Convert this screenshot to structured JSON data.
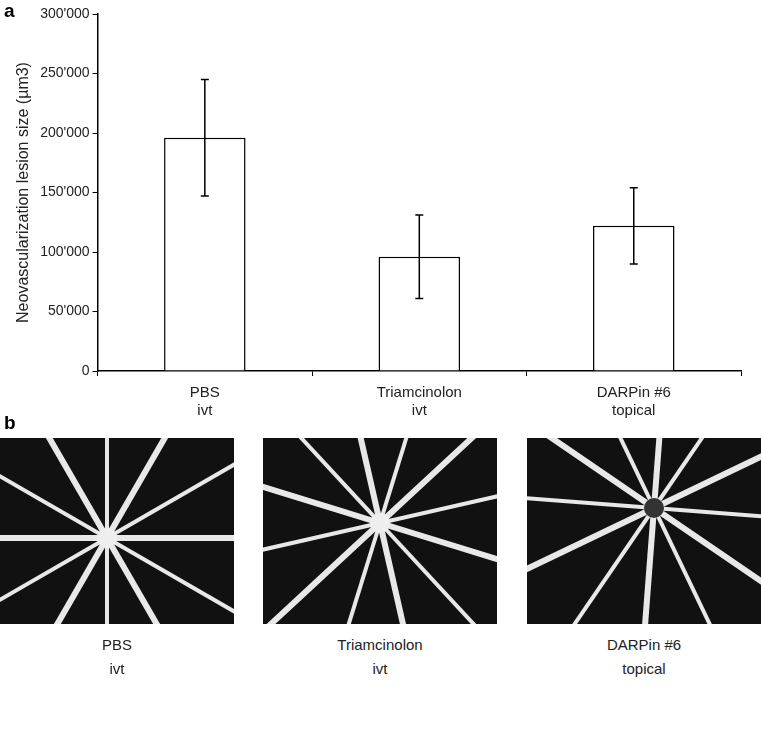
{
  "chart_data": {
    "type": "bar",
    "y_label": "Neovascularization lesion size (µm3)",
    "categories": [
      [
        "PBS",
        "ivt"
      ],
      [
        "Triamcinolon",
        "ivt"
      ],
      [
        "DARPin #6",
        "topical"
      ]
    ],
    "values": [
      196000,
      96000,
      122000
    ],
    "errors": [
      49000,
      35000,
      32000
    ],
    "color": "#ffffff",
    "ylim": [
      0,
      300000
    ],
    "yticks": [
      0,
      {
        "value": 50000,
        "label": "50'000"
      },
      {
        "value": 100000,
        "label": "100'000"
      },
      {
        "value": 150000,
        "label": "150'000"
      },
      {
        "value": 200000,
        "label": "200'000"
      },
      {
        "value": 250000,
        "label": "250'000"
      },
      {
        "value": 300000,
        "label": "300'000"
      }
    ],
    "grid": false
  },
  "figure": {
    "panel_labels": [
      "a",
      "b"
    ],
    "images": [
      {
        "caption": [
          "PBS",
          "ivt"
        ]
      },
      {
        "caption": [
          "Triamcinolon",
          "ivt"
        ]
      },
      {
        "caption": [
          "DARPin #6",
          "topical"
        ]
      }
    ]
  }
}
